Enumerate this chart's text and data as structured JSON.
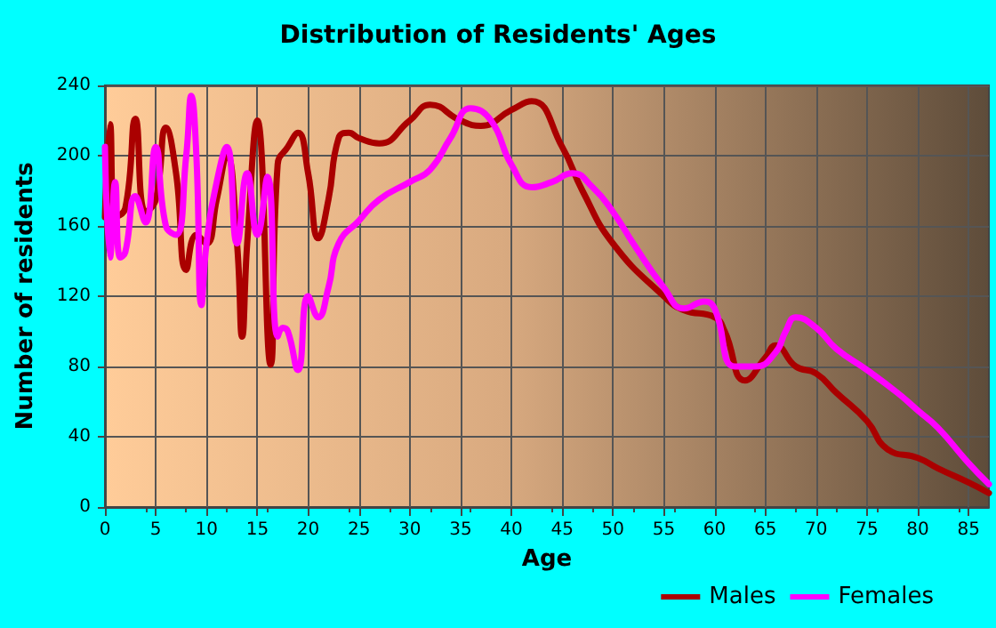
{
  "chart_data": {
    "type": "line",
    "title": "Distribution of Residents' Ages",
    "xlabel": "Age",
    "ylabel": "Number of residents",
    "xlim": [
      0,
      87
    ],
    "xticks": [
      0,
      5,
      10,
      15,
      20,
      25,
      30,
      35,
      40,
      45,
      50,
      55,
      60,
      65,
      70,
      75,
      80,
      85
    ],
    "ylim": [
      0,
      240
    ],
    "yticks": [
      0,
      40,
      80,
      120,
      160,
      200,
      240
    ],
    "grid": true,
    "legend": "bottom right",
    "marker": "none",
    "line_style": "solid",
    "series": [
      {
        "name": "Males",
        "color": "#aa0000",
        "x": [
          0,
          0.5,
          1,
          2,
          3,
          4,
          5,
          6,
          7,
          8,
          9,
          10,
          11,
          12,
          13,
          13.5,
          14,
          15,
          16.3,
          17,
          18,
          19,
          20,
          21,
          22,
          23,
          24,
          25,
          27,
          30,
          32,
          35,
          37,
          40,
          42,
          45,
          47,
          50,
          55,
          57,
          60,
          61,
          63,
          65,
          66,
          68,
          70,
          72,
          75,
          77,
          80,
          82,
          85,
          87
        ],
        "values": [
          165,
          218,
          165,
          170,
          221,
          168,
          175,
          216,
          190,
          135,
          155,
          150,
          175,
          200,
          150,
          97,
          150,
          220,
          81,
          195,
          205,
          213,
          190,
          153,
          175,
          210,
          213,
          210,
          207,
          220,
          229,
          220,
          217,
          226,
          231,
          205,
          180,
          150,
          120,
          112,
          108,
          100,
          72,
          85,
          92,
          80,
          76,
          65,
          49,
          33,
          28,
          22,
          14,
          8
        ]
      },
      {
        "name": "Females",
        "color": "#ff00ff",
        "x": [
          0,
          0.5,
          1,
          1.5,
          2,
          3,
          4,
          5,
          6,
          7,
          8,
          8.5,
          9,
          9.5,
          10,
          11,
          12,
          13,
          14,
          15,
          16,
          17,
          17.5,
          18,
          19,
          20,
          21,
          22,
          23,
          25,
          27,
          30,
          32,
          34,
          36,
          38,
          40,
          42,
          44,
          46,
          48,
          50,
          52,
          55,
          57,
          59,
          60,
          62,
          64,
          66,
          67,
          68,
          70,
          72,
          75,
          78,
          80,
          82,
          85,
          87
        ],
        "values": [
          205,
          142,
          185,
          142,
          145,
          177,
          162,
          205,
          160,
          155,
          200,
          234,
          200,
          115,
          150,
          185,
          205,
          150,
          190,
          155,
          188,
          97,
          102,
          100,
          78,
          120,
          108,
          125,
          150,
          163,
          175,
          185,
          192,
          210,
          227,
          220,
          195,
          182,
          185,
          190,
          182,
          168,
          150,
          125,
          113,
          117,
          113,
          80,
          80,
          88,
          100,
          108,
          102,
          90,
          78,
          65,
          55,
          45,
          25,
          13
        ]
      }
    ]
  }
}
